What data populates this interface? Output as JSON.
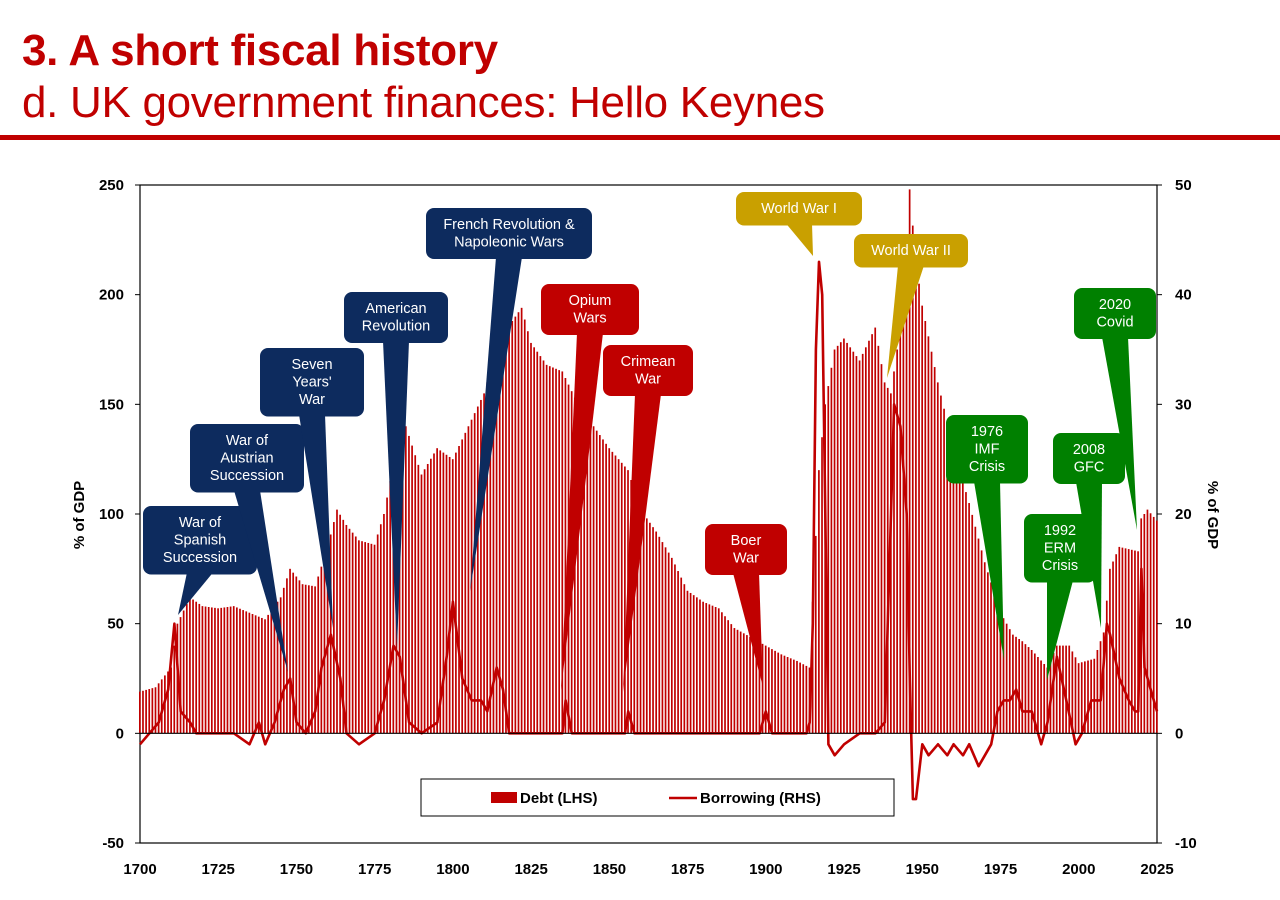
{
  "header": {
    "title": "3. A short fiscal history",
    "subtitle": "d. UK government finances: Hello Keynes"
  },
  "colors": {
    "accent": "#c00000",
    "bar": "#c00000",
    "line": "#c00000",
    "navy": "#0d2b5e",
    "red": "#c00000",
    "gold": "#c9a000",
    "green": "#008000"
  },
  "chart_data": {
    "type": "bar",
    "title": "",
    "ylabel": "% of GDP",
    "ylabel_right": "% of GDP",
    "xlim": [
      1700,
      2025
    ],
    "ylim": [
      -50,
      250
    ],
    "ylim_right": [
      -10,
      50
    ],
    "xticks": [
      1700,
      1725,
      1750,
      1775,
      1800,
      1825,
      1850,
      1875,
      1900,
      1925,
      1950,
      1975,
      2000,
      2025
    ],
    "yticks_left": [
      -50,
      0,
      50,
      100,
      150,
      200,
      250
    ],
    "yticks_right": [
      -10,
      0,
      10,
      20,
      30,
      40,
      50
    ],
    "legend": [
      "Debt (LHS)",
      "Borrowing (RHS)"
    ],
    "legend_position": "bottom-center",
    "series": [
      {
        "name": "Debt (LHS)",
        "type": "bar",
        "points": [
          [
            1700,
            19
          ],
          [
            1705,
            21
          ],
          [
            1710,
            30
          ],
          [
            1712,
            50
          ],
          [
            1716,
            62
          ],
          [
            1720,
            58
          ],
          [
            1725,
            57
          ],
          [
            1730,
            58
          ],
          [
            1735,
            55
          ],
          [
            1740,
            52
          ],
          [
            1745,
            62
          ],
          [
            1748,
            75
          ],
          [
            1752,
            68
          ],
          [
            1756,
            67
          ],
          [
            1760,
            85
          ],
          [
            1763,
            102
          ],
          [
            1766,
            95
          ],
          [
            1770,
            88
          ],
          [
            1775,
            86
          ],
          [
            1778,
            100
          ],
          [
            1782,
            130
          ],
          [
            1785,
            140
          ],
          [
            1790,
            118
          ],
          [
            1795,
            130
          ],
          [
            1800,
            125
          ],
          [
            1805,
            140
          ],
          [
            1810,
            155
          ],
          [
            1815,
            180
          ],
          [
            1820,
            190
          ],
          [
            1822,
            194
          ],
          [
            1825,
            178
          ],
          [
            1830,
            168
          ],
          [
            1835,
            165
          ],
          [
            1840,
            150
          ],
          [
            1845,
            140
          ],
          [
            1850,
            130
          ],
          [
            1853,
            125
          ],
          [
            1856,
            120
          ],
          [
            1860,
            102
          ],
          [
            1865,
            92
          ],
          [
            1870,
            80
          ],
          [
            1875,
            65
          ],
          [
            1880,
            60
          ],
          [
            1885,
            57
          ],
          [
            1890,
            48
          ],
          [
            1895,
            44
          ],
          [
            1900,
            40
          ],
          [
            1905,
            36
          ],
          [
            1910,
            33
          ],
          [
            1914,
            30
          ],
          [
            1915,
            60
          ],
          [
            1917,
            120
          ],
          [
            1919,
            150
          ],
          [
            1922,
            175
          ],
          [
            1925,
            180
          ],
          [
            1930,
            170
          ],
          [
            1935,
            185
          ],
          [
            1938,
            160
          ],
          [
            1940,
            155
          ],
          [
            1943,
            185
          ],
          [
            1946,
            248
          ],
          [
            1948,
            215
          ],
          [
            1950,
            195
          ],
          [
            1955,
            160
          ],
          [
            1960,
            130
          ],
          [
            1965,
            105
          ],
          [
            1970,
            78
          ],
          [
            1975,
            55
          ],
          [
            1979,
            45
          ],
          [
            1982,
            42
          ],
          [
            1985,
            38
          ],
          [
            1990,
            30
          ],
          [
            1993,
            40
          ],
          [
            1997,
            40
          ],
          [
            2000,
            32
          ],
          [
            2005,
            34
          ],
          [
            2008,
            46
          ],
          [
            2010,
            75
          ],
          [
            2013,
            85
          ],
          [
            2016,
            84
          ],
          [
            2019,
            83
          ],
          [
            2020,
            98
          ],
          [
            2022,
            102
          ],
          [
            2025,
            97
          ]
        ]
      },
      {
        "name": "Borrowing (RHS)",
        "type": "line",
        "points": [
          [
            1700,
            -1
          ],
          [
            1703,
            0
          ],
          [
            1706,
            1
          ],
          [
            1709,
            4
          ],
          [
            1711,
            10
          ],
          [
            1713,
            2
          ],
          [
            1716,
            1
          ],
          [
            1718,
            0
          ],
          [
            1720,
            0
          ],
          [
            1725,
            0
          ],
          [
            1730,
            0
          ],
          [
            1735,
            -1
          ],
          [
            1738,
            1
          ],
          [
            1740,
            -1
          ],
          [
            1743,
            1
          ],
          [
            1746,
            4
          ],
          [
            1748,
            5
          ],
          [
            1750,
            1
          ],
          [
            1753,
            0
          ],
          [
            1756,
            2
          ],
          [
            1758,
            6
          ],
          [
            1761,
            9
          ],
          [
            1764,
            5
          ],
          [
            1766,
            0
          ],
          [
            1770,
            -1
          ],
          [
            1775,
            0
          ],
          [
            1778,
            3
          ],
          [
            1781,
            8
          ],
          [
            1783,
            7
          ],
          [
            1786,
            1
          ],
          [
            1790,
            0
          ],
          [
            1795,
            1
          ],
          [
            1798,
            7
          ],
          [
            1800,
            12
          ],
          [
            1803,
            5
          ],
          [
            1806,
            3
          ],
          [
            1809,
            3
          ],
          [
            1811,
            2
          ],
          [
            1814,
            6
          ],
          [
            1816,
            4
          ],
          [
            1818,
            0
          ],
          [
            1825,
            0
          ],
          [
            1830,
            0
          ],
          [
            1835,
            0
          ],
          [
            1836,
            3
          ],
          [
            1838,
            0
          ],
          [
            1845,
            0
          ],
          [
            1850,
            0
          ],
          [
            1855,
            0
          ],
          [
            1856,
            2
          ],
          [
            1858,
            0
          ],
          [
            1875,
            0
          ],
          [
            1890,
            0
          ],
          [
            1898,
            0
          ],
          [
            1900,
            2
          ],
          [
            1902,
            0
          ],
          [
            1906,
            0
          ],
          [
            1910,
            0
          ],
          [
            1913,
            0
          ],
          [
            1914,
            1
          ],
          [
            1915,
            10
          ],
          [
            1916,
            35
          ],
          [
            1917,
            43
          ],
          [
            1918,
            40
          ],
          [
            1919,
            20
          ],
          [
            1920,
            -1
          ],
          [
            1922,
            -2
          ],
          [
            1925,
            -1
          ],
          [
            1930,
            0
          ],
          [
            1935,
            0
          ],
          [
            1938,
            1
          ],
          [
            1940,
            20
          ],
          [
            1941,
            30
          ],
          [
            1943,
            28
          ],
          [
            1945,
            20
          ],
          [
            1946,
            5
          ],
          [
            1947,
            -6
          ],
          [
            1948,
            -6
          ],
          [
            1950,
            -1
          ],
          [
            1952,
            -2
          ],
          [
            1955,
            -1
          ],
          [
            1958,
            -2
          ],
          [
            1960,
            -1
          ],
          [
            1963,
            -2
          ],
          [
            1965,
            -1
          ],
          [
            1968,
            -3
          ],
          [
            1970,
            -2
          ],
          [
            1972,
            -1
          ],
          [
            1974,
            2
          ],
          [
            1976,
            3
          ],
          [
            1978,
            3
          ],
          [
            1980,
            4
          ],
          [
            1982,
            2
          ],
          [
            1985,
            2
          ],
          [
            1988,
            -1
          ],
          [
            1990,
            1
          ],
          [
            1993,
            7
          ],
          [
            1996,
            3
          ],
          [
            1999,
            -1
          ],
          [
            2001,
            0
          ],
          [
            2004,
            3
          ],
          [
            2007,
            3
          ],
          [
            2009,
            10
          ],
          [
            2010,
            9
          ],
          [
            2013,
            5
          ],
          [
            2016,
            3
          ],
          [
            2018,
            2
          ],
          [
            2019,
            2
          ],
          [
            2020,
            15
          ],
          [
            2021,
            6
          ],
          [
            2023,
            4
          ],
          [
            2025,
            2
          ]
        ]
      }
    ],
    "annotations": [
      {
        "text": [
          "War of",
          "Spanish",
          "Succession"
        ],
        "year": 1712,
        "color": "navy"
      },
      {
        "text": [
          "War of",
          "Austrian",
          "Succession"
        ],
        "year": 1748,
        "color": "navy"
      },
      {
        "text": [
          "Seven",
          "Years'",
          "War"
        ],
        "year": 1762,
        "color": "navy"
      },
      {
        "text": [
          "American",
          "Revolution"
        ],
        "year": 1783,
        "color": "navy"
      },
      {
        "text": [
          "French Revolution &",
          "Napoleonic Wars"
        ],
        "year": 1806,
        "color": "navy"
      },
      {
        "text": [
          "Opium",
          "Wars"
        ],
        "year": 1836,
        "color": "red"
      },
      {
        "text": [
          "Crimean",
          "War"
        ],
        "year": 1856,
        "color": "red"
      },
      {
        "text": [
          "Boer",
          "War"
        ],
        "year": 1900,
        "color": "red"
      },
      {
        "text": [
          "World War I"
        ],
        "year": 1916,
        "color": "gold"
      },
      {
        "text": [
          "World War II"
        ],
        "year": 1941,
        "color": "gold"
      },
      {
        "text": [
          "1976",
          "IMF",
          "Crisis"
        ],
        "year": 1979,
        "color": "green"
      },
      {
        "text": [
          "1992",
          "ERM",
          "Crisis"
        ],
        "year": 1992,
        "color": "green"
      },
      {
        "text": [
          "2008",
          "GFC"
        ],
        "year": 2009,
        "color": "green"
      },
      {
        "text": [
          "2020",
          "Covid"
        ],
        "year": 2020,
        "color": "green"
      }
    ]
  }
}
